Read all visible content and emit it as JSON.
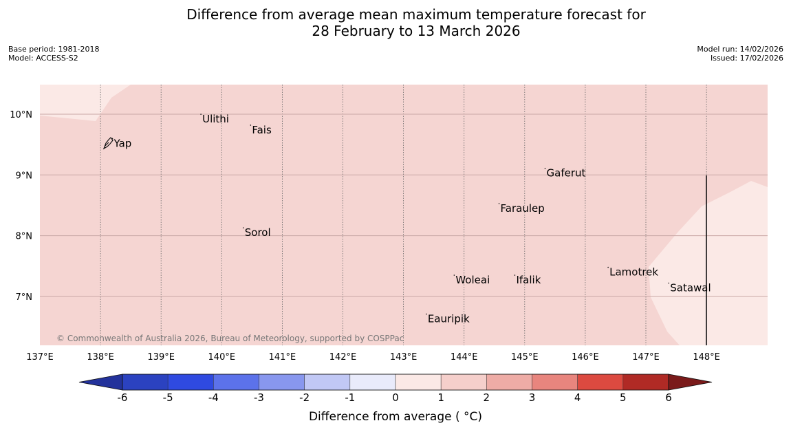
{
  "title_line1": "Difference from average mean maximum temperature forecast for",
  "title_line2": "28 February to 13 March 2026",
  "meta_left": {
    "base_period": "Base period: 1981-2018",
    "model": "Model: ACCESS-S2"
  },
  "meta_right": {
    "model_run": "Model run: 14/02/2026",
    "issued": "Issued: 17/02/2026"
  },
  "copyright": "© Commonwealth of Australia 2026, Bureau of Meteorology, supported by COSPPac",
  "map": {
    "lon_labels": [
      "137°E",
      "138°E",
      "139°E",
      "140°E",
      "141°E",
      "142°E",
      "143°E",
      "144°E",
      "145°E",
      "146°E",
      "147°E",
      "148°E"
    ],
    "lat_labels": [
      "10°N",
      "9°N",
      "8°N",
      "7°N"
    ],
    "places": [
      {
        "name": "Yap",
        "lon": 138.22,
        "lat": 9.52
      },
      {
        "name": "Ulithi",
        "lon": 139.68,
        "lat": 9.92
      },
      {
        "name": "Fais",
        "lon": 140.5,
        "lat": 9.74
      },
      {
        "name": "Gaferut",
        "lon": 145.36,
        "lat": 9.03
      },
      {
        "name": "Faraulep",
        "lon": 144.6,
        "lat": 8.45
      },
      {
        "name": "Sorol",
        "lon": 140.38,
        "lat": 8.05
      },
      {
        "name": "Woleai",
        "lon": 143.86,
        "lat": 7.27
      },
      {
        "name": "Ifalik",
        "lon": 144.86,
        "lat": 7.27
      },
      {
        "name": "Lamotrek",
        "lon": 146.4,
        "lat": 7.4
      },
      {
        "name": "Satawal",
        "lon": 147.4,
        "lat": 7.14
      },
      {
        "name": "Eauripik",
        "lon": 143.4,
        "lat": 6.63
      }
    ],
    "fill_colors": {
      "band_1_2": "#f5d5d2",
      "band_0_1": "#fbe9e6"
    }
  },
  "colorbar": {
    "ticks": [
      "-6",
      "-5",
      "-4",
      "-3",
      "-2",
      "-1",
      "0",
      "1",
      "2",
      "3",
      "4",
      "5",
      "6"
    ],
    "colors": [
      "#23329b",
      "#2b42c0",
      "#2f4ae0",
      "#5c72ea",
      "#8897ee",
      "#c1c8f5",
      "#e9ebfb",
      "#fbe9e6",
      "#f5cfcb",
      "#eeaca6",
      "#e8857e",
      "#dc4a40",
      "#b02a25",
      "#7a1a1a"
    ],
    "label": "Difference from average ( °C)"
  }
}
